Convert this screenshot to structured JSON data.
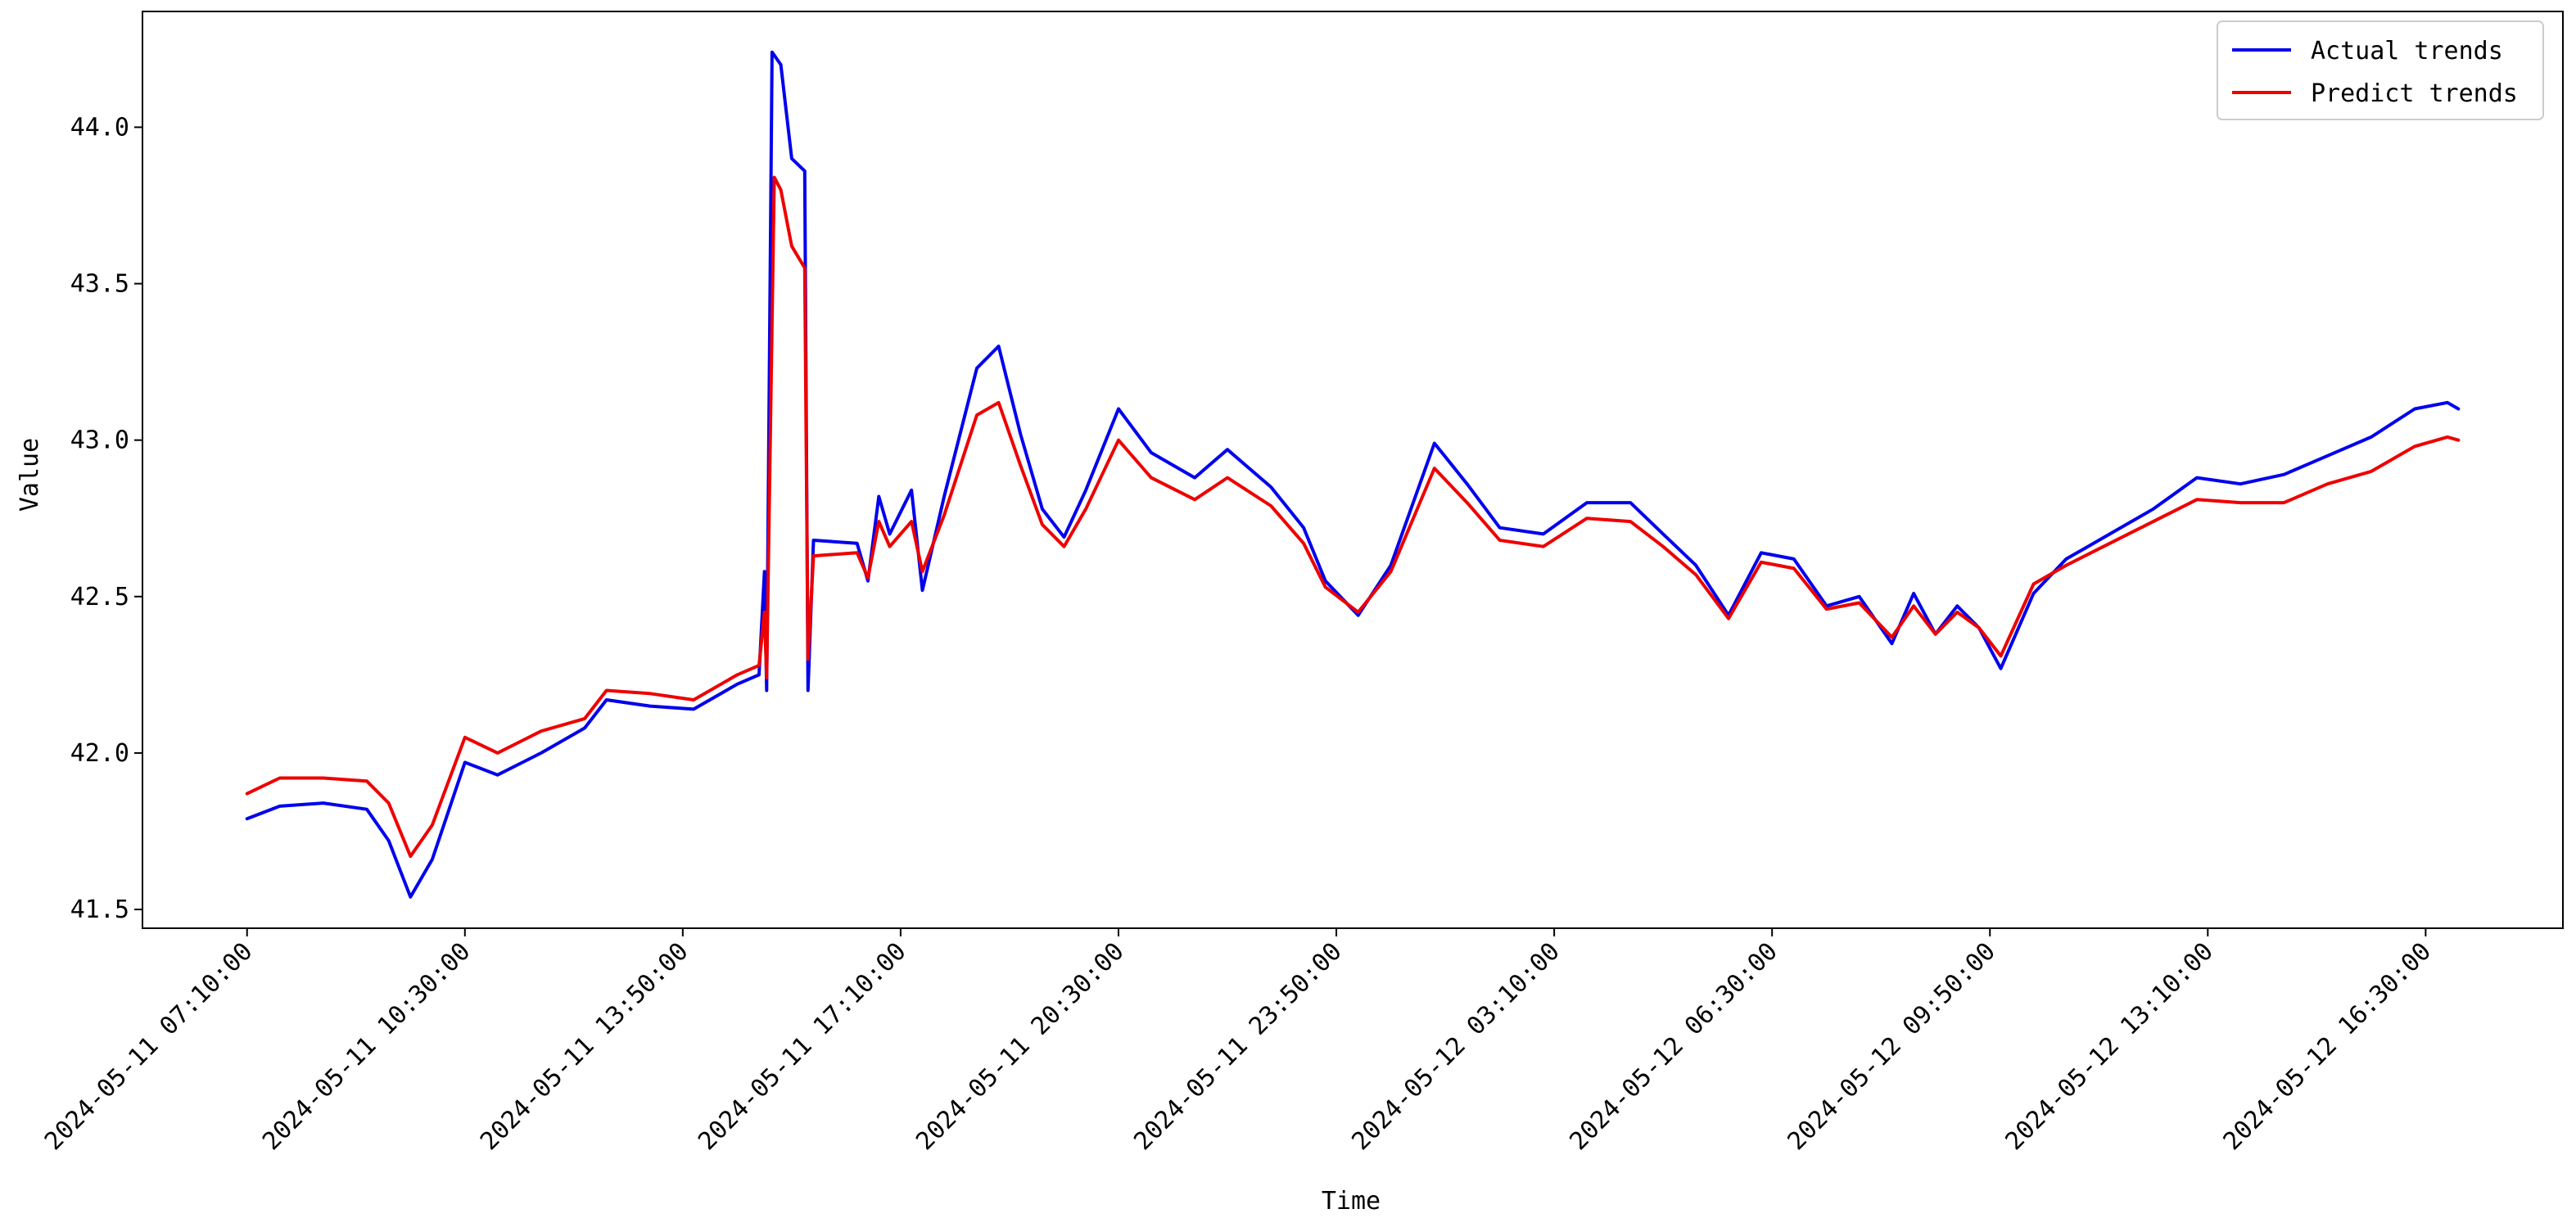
{
  "chart_data": {
    "type": "line",
    "title": "",
    "xlabel": "Time",
    "ylabel": "Value",
    "x_range": [
      "2024-05-11 05:34",
      "2024-05-12 18:36"
    ],
    "ylim": [
      41.44,
      44.37
    ],
    "grid": false,
    "legend_position": "top-right",
    "x_ticks": [
      "2024-05-11 07:10:00",
      "2024-05-11 10:30:00",
      "2024-05-11 13:50:00",
      "2024-05-11 17:10:00",
      "2024-05-11 20:30:00",
      "2024-05-11 23:50:00",
      "2024-05-12 03:10:00",
      "2024-05-12 06:30:00",
      "2024-05-12 09:50:00",
      "2024-05-12 13:10:00",
      "2024-05-12 16:30:00"
    ],
    "y_ticks": [
      "41.5",
      "42.0",
      "42.5",
      "43.0",
      "43.5",
      "44.0"
    ],
    "series": [
      {
        "name": "Actual trends",
        "color": "#0000ee",
        "points": [
          [
            "2024-05-11 07:10",
            41.79
          ],
          [
            "2024-05-11 07:40",
            41.83
          ],
          [
            "2024-05-11 08:20",
            41.84
          ],
          [
            "2024-05-11 09:00",
            41.82
          ],
          [
            "2024-05-11 09:20",
            41.72
          ],
          [
            "2024-05-11 09:40",
            41.54
          ],
          [
            "2024-05-11 10:00",
            41.66
          ],
          [
            "2024-05-11 10:30",
            41.97
          ],
          [
            "2024-05-11 11:00",
            41.93
          ],
          [
            "2024-05-11 11:40",
            42.0
          ],
          [
            "2024-05-11 12:20",
            42.08
          ],
          [
            "2024-05-11 12:40",
            42.17
          ],
          [
            "2024-05-11 13:20",
            42.15
          ],
          [
            "2024-05-11 14:00",
            42.14
          ],
          [
            "2024-05-11 14:40",
            42.22
          ],
          [
            "2024-05-11 15:00",
            42.25
          ],
          [
            "2024-05-11 15:05",
            42.58
          ],
          [
            "2024-05-11 15:07",
            42.2
          ],
          [
            "2024-05-11 15:12",
            44.24
          ],
          [
            "2024-05-11 15:20",
            44.2
          ],
          [
            "2024-05-11 15:30",
            43.9
          ],
          [
            "2024-05-11 15:42",
            43.86
          ],
          [
            "2024-05-11 15:45",
            42.2
          ],
          [
            "2024-05-11 15:50",
            42.68
          ],
          [
            "2024-05-11 16:30",
            42.67
          ],
          [
            "2024-05-11 16:40",
            42.55
          ],
          [
            "2024-05-11 16:50",
            42.82
          ],
          [
            "2024-05-11 17:00",
            42.7
          ],
          [
            "2024-05-11 17:20",
            42.84
          ],
          [
            "2024-05-11 17:30",
            42.52
          ],
          [
            "2024-05-11 17:50",
            42.82
          ],
          [
            "2024-05-11 18:20",
            43.23
          ],
          [
            "2024-05-11 18:40",
            43.3
          ],
          [
            "2024-05-11 19:00",
            43.02
          ],
          [
            "2024-05-11 19:20",
            42.78
          ],
          [
            "2024-05-11 19:40",
            42.69
          ],
          [
            "2024-05-11 20:00",
            42.84
          ],
          [
            "2024-05-11 20:30",
            43.1
          ],
          [
            "2024-05-11 21:00",
            42.96
          ],
          [
            "2024-05-11 21:40",
            42.88
          ],
          [
            "2024-05-11 22:10",
            42.97
          ],
          [
            "2024-05-11 22:50",
            42.85
          ],
          [
            "2024-05-11 23:20",
            42.72
          ],
          [
            "2024-05-11 23:40",
            42.55
          ],
          [
            "2024-05-12 00:10",
            42.44
          ],
          [
            "2024-05-12 00:40",
            42.6
          ],
          [
            "2024-05-12 01:20",
            42.99
          ],
          [
            "2024-05-12 01:50",
            42.86
          ],
          [
            "2024-05-12 02:20",
            42.72
          ],
          [
            "2024-05-12 03:00",
            42.7
          ],
          [
            "2024-05-12 03:40",
            42.8
          ],
          [
            "2024-05-12 04:20",
            42.8
          ],
          [
            "2024-05-12 04:50",
            42.7
          ],
          [
            "2024-05-12 05:20",
            42.6
          ],
          [
            "2024-05-12 05:50",
            42.44
          ],
          [
            "2024-05-12 06:20",
            42.64
          ],
          [
            "2024-05-12 06:50",
            42.62
          ],
          [
            "2024-05-12 07:20",
            42.47
          ],
          [
            "2024-05-12 07:50",
            42.5
          ],
          [
            "2024-05-12 08:20",
            42.35
          ],
          [
            "2024-05-12 08:40",
            42.51
          ],
          [
            "2024-05-12 09:00",
            42.38
          ],
          [
            "2024-05-12 09:20",
            42.47
          ],
          [
            "2024-05-12 09:40",
            42.4
          ],
          [
            "2024-05-12 10:00",
            42.27
          ],
          [
            "2024-05-12 10:30",
            42.51
          ],
          [
            "2024-05-12 11:00",
            42.62
          ],
          [
            "2024-05-12 11:40",
            42.7
          ],
          [
            "2024-05-12 12:20",
            42.78
          ],
          [
            "2024-05-12 13:00",
            42.88
          ],
          [
            "2024-05-12 13:40",
            42.86
          ],
          [
            "2024-05-12 14:20",
            42.89
          ],
          [
            "2024-05-12 15:00",
            42.95
          ],
          [
            "2024-05-12 15:40",
            43.01
          ],
          [
            "2024-05-12 16:20",
            43.1
          ],
          [
            "2024-05-12 16:50",
            43.12
          ],
          [
            "2024-05-12 17:00",
            43.1
          ]
        ]
      },
      {
        "name": "Predict trends",
        "color": "#ee0000",
        "points": [
          [
            "2024-05-11 07:10",
            41.87
          ],
          [
            "2024-05-11 07:40",
            41.92
          ],
          [
            "2024-05-11 08:20",
            41.92
          ],
          [
            "2024-05-11 09:00",
            41.91
          ],
          [
            "2024-05-11 09:20",
            41.84
          ],
          [
            "2024-05-11 09:40",
            41.67
          ],
          [
            "2024-05-11 10:00",
            41.77
          ],
          [
            "2024-05-11 10:30",
            42.05
          ],
          [
            "2024-05-11 11:00",
            42.0
          ],
          [
            "2024-05-11 11:40",
            42.07
          ],
          [
            "2024-05-11 12:20",
            42.11
          ],
          [
            "2024-05-11 12:40",
            42.2
          ],
          [
            "2024-05-11 13:20",
            42.19
          ],
          [
            "2024-05-11 14:00",
            42.17
          ],
          [
            "2024-05-11 14:40",
            42.25
          ],
          [
            "2024-05-11 15:00",
            42.28
          ],
          [
            "2024-05-11 15:05",
            42.45
          ],
          [
            "2024-05-11 15:07",
            42.24
          ],
          [
            "2024-05-11 15:14",
            43.84
          ],
          [
            "2024-05-11 15:20",
            43.8
          ],
          [
            "2024-05-11 15:30",
            43.62
          ],
          [
            "2024-05-11 15:42",
            43.55
          ],
          [
            "2024-05-11 15:45",
            42.3
          ],
          [
            "2024-05-11 15:50",
            42.63
          ],
          [
            "2024-05-11 16:30",
            42.64
          ],
          [
            "2024-05-11 16:40",
            42.56
          ],
          [
            "2024-05-11 16:50",
            42.74
          ],
          [
            "2024-05-11 17:00",
            42.66
          ],
          [
            "2024-05-11 17:20",
            42.74
          ],
          [
            "2024-05-11 17:30",
            42.58
          ],
          [
            "2024-05-11 17:50",
            42.76
          ],
          [
            "2024-05-11 18:20",
            43.08
          ],
          [
            "2024-05-11 18:40",
            43.12
          ],
          [
            "2024-05-11 19:00",
            42.92
          ],
          [
            "2024-05-11 19:20",
            42.73
          ],
          [
            "2024-05-11 19:40",
            42.66
          ],
          [
            "2024-05-11 20:00",
            42.78
          ],
          [
            "2024-05-11 20:30",
            43.0
          ],
          [
            "2024-05-11 21:00",
            42.88
          ],
          [
            "2024-05-11 21:40",
            42.81
          ],
          [
            "2024-05-11 22:10",
            42.88
          ],
          [
            "2024-05-11 22:50",
            42.79
          ],
          [
            "2024-05-11 23:20",
            42.67
          ],
          [
            "2024-05-11 23:40",
            42.53
          ],
          [
            "2024-05-12 00:10",
            42.45
          ],
          [
            "2024-05-12 00:40",
            42.58
          ],
          [
            "2024-05-12 01:20",
            42.91
          ],
          [
            "2024-05-12 01:50",
            42.8
          ],
          [
            "2024-05-12 02:20",
            42.68
          ],
          [
            "2024-05-12 03:00",
            42.66
          ],
          [
            "2024-05-12 03:40",
            42.75
          ],
          [
            "2024-05-12 04:20",
            42.74
          ],
          [
            "2024-05-12 04:50",
            42.66
          ],
          [
            "2024-05-12 05:20",
            42.57
          ],
          [
            "2024-05-12 05:50",
            42.43
          ],
          [
            "2024-05-12 06:20",
            42.61
          ],
          [
            "2024-05-12 06:50",
            42.59
          ],
          [
            "2024-05-12 07:20",
            42.46
          ],
          [
            "2024-05-12 07:50",
            42.48
          ],
          [
            "2024-05-12 08:20",
            42.37
          ],
          [
            "2024-05-12 08:40",
            42.47
          ],
          [
            "2024-05-12 09:00",
            42.38
          ],
          [
            "2024-05-12 09:20",
            42.45
          ],
          [
            "2024-05-12 09:40",
            42.4
          ],
          [
            "2024-05-12 10:00",
            42.31
          ],
          [
            "2024-05-12 10:30",
            42.54
          ],
          [
            "2024-05-12 11:00",
            42.6
          ],
          [
            "2024-05-12 11:40",
            42.67
          ],
          [
            "2024-05-12 12:20",
            42.74
          ],
          [
            "2024-05-12 13:00",
            42.81
          ],
          [
            "2024-05-12 13:40",
            42.8
          ],
          [
            "2024-05-12 14:20",
            42.8
          ],
          [
            "2024-05-12 15:00",
            42.86
          ],
          [
            "2024-05-12 15:40",
            42.9
          ],
          [
            "2024-05-12 16:20",
            42.98
          ],
          [
            "2024-05-12 16:50",
            43.01
          ],
          [
            "2024-05-12 17:00",
            43.0
          ]
        ]
      }
    ]
  }
}
